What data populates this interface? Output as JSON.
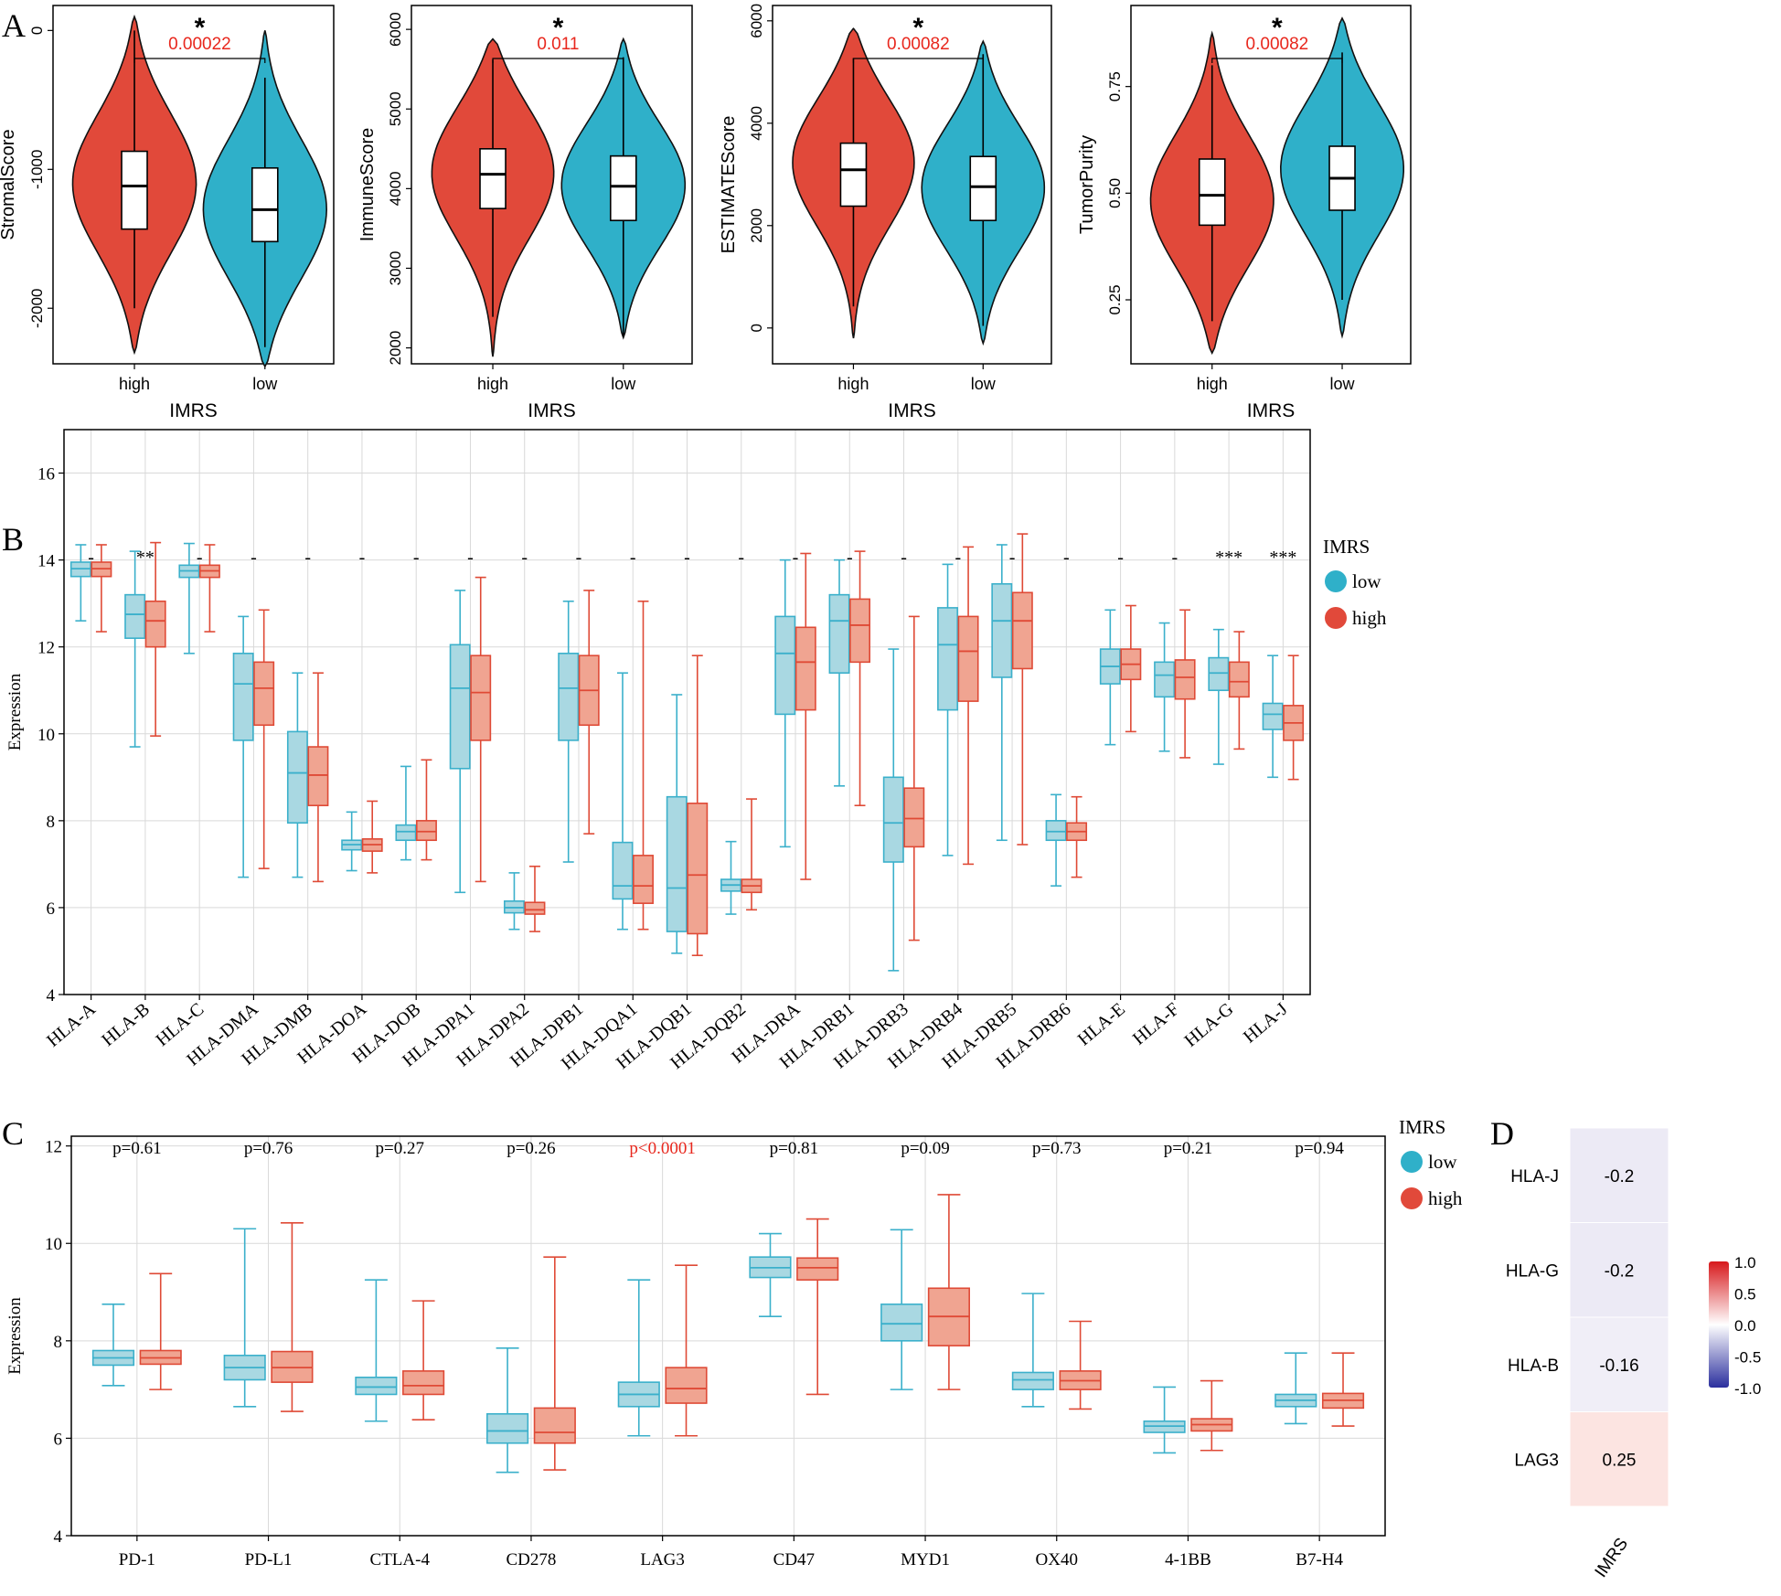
{
  "panel_labels": {
    "a": "A",
    "b": "B",
    "c": "C",
    "d": "D"
  },
  "colors": {
    "high": "#e1493a",
    "low": "#2fb0c9",
    "high_light": "#f0a491",
    "low_light": "#a9d8e2",
    "low_box": "#3bb0cb",
    "high_box": "#df4a36",
    "sig_red": "#e8271d",
    "neg": "#5557a8",
    "pos": "#e8271d"
  },
  "chart_data": [
    {
      "id": "A1",
      "type": "violin",
      "title": "",
      "xlabel": "IMRS",
      "ylabel": "StromalScore",
      "categories": [
        "high",
        "low"
      ],
      "ylim": [
        -2400,
        180
      ],
      "yticks": [
        0,
        -1000,
        -2000
      ],
      "ytick_labels": [
        "0",
        "-1000",
        "-2000"
      ],
      "violins": [
        {
          "group": "high",
          "min": -2320,
          "max": 100,
          "q1": -1430,
          "median": -1120,
          "q3": -870,
          "lower_whisker": -2000,
          "upper_whisker": 0,
          "mode": -1100,
          "spread": 0.55
        },
        {
          "group": "low",
          "min": -2420,
          "max": 0,
          "q1": -1520,
          "median": -1290,
          "q3": -990,
          "lower_whisker": -2280,
          "upper_whisker": -340,
          "mode": -1300,
          "spread": 0.55
        }
      ],
      "significance": {
        "stars": "*",
        "pvalue": "0.00022"
      }
    },
    {
      "id": "A2",
      "type": "violin",
      "title": "",
      "xlabel": "IMRS",
      "ylabel": "ImmuneScore",
      "categories": [
        "high",
        "low"
      ],
      "ylim": [
        1800,
        6300
      ],
      "yticks": [
        2000,
        3000,
        4000,
        5000,
        6000
      ],
      "ytick_labels": [
        "2000",
        "3000",
        "4000",
        "5000",
        "6000"
      ],
      "violins": [
        {
          "group": "high",
          "min": 1890,
          "max": 5880,
          "q1": 3750,
          "median": 4180,
          "q3": 4500,
          "lower_whisker": 2390,
          "upper_whisker": 5620,
          "mode": 4250,
          "spread": 0.45
        },
        {
          "group": "low",
          "min": 2130,
          "max": 5880,
          "q1": 3600,
          "median": 4030,
          "q3": 4410,
          "lower_whisker": 2140,
          "upper_whisker": 5650,
          "mode": 4050,
          "spread": 0.45
        }
      ],
      "significance": {
        "stars": "*",
        "pvalue": "0.011"
      }
    },
    {
      "id": "A3",
      "type": "violin",
      "title": "",
      "xlabel": "IMRS",
      "ylabel": "ESTIMATEScore",
      "categories": [
        "high",
        "low"
      ],
      "ylim": [
        -700,
        6300
      ],
      "yticks": [
        0,
        2000,
        4000,
        6000
      ],
      "ytick_labels": [
        "0",
        "2000",
        "4000",
        "6000"
      ],
      "violins": [
        {
          "group": "high",
          "min": -200,
          "max": 5850,
          "q1": 2380,
          "median": 3090,
          "q3": 3610,
          "lower_whisker": 420,
          "upper_whisker": 5270,
          "mode": 3300,
          "spread": 0.5
        },
        {
          "group": "low",
          "min": -300,
          "max": 5600,
          "q1": 2100,
          "median": 2760,
          "q3": 3350,
          "lower_whisker": 40,
          "upper_whisker": 5350,
          "mode": 2750,
          "spread": 0.5
        }
      ],
      "significance": {
        "stars": "*",
        "pvalue": "0.00082"
      }
    },
    {
      "id": "A4",
      "type": "violin",
      "title": "",
      "xlabel": "IMRS",
      "ylabel": "TumorPurity",
      "categories": [
        "high",
        "low"
      ],
      "ylim": [
        0.1,
        0.94
      ],
      "yticks": [
        0.25,
        0.5,
        0.75
      ],
      "ytick_labels": [
        "0.25",
        "0.50",
        "0.75"
      ],
      "violins": [
        {
          "group": "high",
          "min": 0.125,
          "max": 0.875,
          "q1": 0.425,
          "median": 0.495,
          "q3": 0.58,
          "lower_whisker": 0.2,
          "upper_whisker": 0.8,
          "mode": 0.48,
          "spread": 0.5
        },
        {
          "group": "low",
          "min": 0.165,
          "max": 0.91,
          "q1": 0.46,
          "median": 0.535,
          "q3": 0.61,
          "lower_whisker": 0.25,
          "upper_whisker": 0.83,
          "mode": 0.56,
          "spread": 0.5
        }
      ],
      "significance": {
        "stars": "*",
        "pvalue": "0.00082"
      }
    },
    {
      "id": "B",
      "type": "box",
      "ylabel": "Expression",
      "xlabel": "",
      "ylim": [
        4,
        17
      ],
      "yticks": [
        4,
        6,
        8,
        10,
        12,
        14,
        16
      ],
      "ytick_labels": [
        "4",
        "6",
        "8",
        "10",
        "12",
        "14",
        "16"
      ],
      "legend_title": "IMRS",
      "legend": [
        "low",
        "high"
      ],
      "categories": [
        "HLA-A",
        "HLA-B",
        "HLA-C",
        "HLA-DMA",
        "HLA-DMB",
        "HLA-DOA",
        "HLA-DOB",
        "HLA-DPA1",
        "HLA-DPA2",
        "HLA-DPB1",
        "HLA-DQA1",
        "HLA-DQB1",
        "HLA-DQB2",
        "HLA-DRA",
        "HLA-DRB1",
        "HLA-DRB3",
        "HLA-DRB4",
        "HLA-DRB5",
        "HLA-DRB6",
        "HLA-E",
        "HLA-F",
        "HLA-G",
        "HLA-J"
      ],
      "significance": [
        "-",
        "**",
        "-",
        "-",
        "-",
        "-",
        "-",
        "-",
        "-",
        "-",
        "-",
        "-",
        "-",
        "-",
        "-",
        "-",
        "-",
        "-",
        "-",
        "-",
        "-",
        "***",
        "***"
      ],
      "series": [
        {
          "name": "low",
          "boxes": [
            [
              12.6,
              13.62,
              13.8,
              13.95,
              14.35
            ],
            [
              9.7,
              12.2,
              12.75,
              13.2,
              14.2
            ],
            [
              11.85,
              13.6,
              13.75,
              13.88,
              14.38
            ],
            [
              6.7,
              9.85,
              11.15,
              11.85,
              12.7
            ],
            [
              6.7,
              7.95,
              9.1,
              10.05,
              11.4
            ],
            [
              6.85,
              7.33,
              7.45,
              7.55,
              8.2
            ],
            [
              7.1,
              7.55,
              7.75,
              7.9,
              9.25
            ],
            [
              6.35,
              9.2,
              11.05,
              12.05,
              13.3
            ],
            [
              5.5,
              5.88,
              6.0,
              6.15,
              6.8
            ],
            [
              7.05,
              9.85,
              11.05,
              11.85,
              13.05
            ],
            [
              5.5,
              6.2,
              6.5,
              7.5,
              11.4
            ],
            [
              4.95,
              5.45,
              6.45,
              8.55,
              10.9
            ],
            [
              5.85,
              6.38,
              6.52,
              6.65,
              7.52
            ],
            [
              7.4,
              10.45,
              11.85,
              12.7,
              14.0
            ],
            [
              8.8,
              11.4,
              12.6,
              13.2,
              14.0
            ],
            [
              4.55,
              7.05,
              7.95,
              9.0,
              11.95
            ],
            [
              7.2,
              10.55,
              12.05,
              12.9,
              13.9
            ],
            [
              7.55,
              11.3,
              12.6,
              13.45,
              14.35
            ],
            [
              6.5,
              7.55,
              7.75,
              8.0,
              8.6
            ],
            [
              9.75,
              11.15,
              11.55,
              11.95,
              12.85
            ],
            [
              9.6,
              10.85,
              11.35,
              11.65,
              12.55
            ],
            [
              9.3,
              11.0,
              11.4,
              11.75,
              12.4
            ],
            [
              9.0,
              10.1,
              10.45,
              10.7,
              11.8
            ]
          ]
        },
        {
          "name": "high",
          "boxes": [
            [
              12.35,
              13.62,
              13.8,
              13.95,
              14.35
            ],
            [
              9.95,
              12.0,
              12.6,
              13.05,
              14.4
            ],
            [
              12.35,
              13.6,
              13.75,
              13.88,
              14.35
            ],
            [
              6.9,
              10.2,
              11.05,
              11.65,
              12.85
            ],
            [
              6.6,
              8.35,
              9.05,
              9.7,
              11.4
            ],
            [
              6.8,
              7.3,
              7.45,
              7.58,
              8.45
            ],
            [
              7.1,
              7.55,
              7.75,
              8.0,
              9.4
            ],
            [
              6.6,
              9.85,
              10.95,
              11.8,
              13.6
            ],
            [
              5.45,
              5.85,
              5.95,
              6.12,
              6.95
            ],
            [
              7.7,
              10.2,
              11.0,
              11.8,
              13.3
            ],
            [
              5.5,
              6.1,
              6.5,
              7.2,
              13.05
            ],
            [
              4.9,
              5.4,
              6.75,
              8.4,
              11.8
            ],
            [
              5.95,
              6.35,
              6.5,
              6.65,
              8.5
            ],
            [
              6.65,
              10.55,
              11.65,
              12.45,
              14.15
            ],
            [
              8.35,
              11.65,
              12.5,
              13.1,
              14.2
            ],
            [
              5.25,
              7.4,
              8.05,
              8.75,
              12.7
            ],
            [
              7.0,
              10.75,
              11.9,
              12.7,
              14.3
            ],
            [
              7.45,
              11.5,
              12.6,
              13.25,
              14.6
            ],
            [
              6.7,
              7.55,
              7.75,
              7.95,
              8.55
            ],
            [
              10.05,
              11.25,
              11.6,
              11.95,
              12.95
            ],
            [
              9.45,
              10.8,
              11.3,
              11.7,
              12.85
            ],
            [
              9.65,
              10.85,
              11.2,
              11.65,
              12.35
            ],
            [
              8.95,
              9.85,
              10.25,
              10.65,
              11.8
            ]
          ]
        }
      ]
    },
    {
      "id": "C",
      "type": "box",
      "ylabel": "Expression",
      "xlabel": "",
      "ylim": [
        4,
        12.2
      ],
      "yticks": [
        4,
        6,
        8,
        10,
        12
      ],
      "ytick_labels": [
        "4",
        "6",
        "8",
        "10",
        "12"
      ],
      "legend_title": "IMRS",
      "legend": [
        "low",
        "high"
      ],
      "categories": [
        "PD-1",
        "PD-L1",
        "CTLA-4",
        "CD278",
        "LAG3",
        "CD47",
        "MYD1",
        "OX40",
        "4-1BB",
        "B7-H4"
      ],
      "pvalues": [
        "p=0.61",
        "p=0.76",
        "p=0.27",
        "p=0.26",
        "p<0.0001",
        "p=0.81",
        "p=0.09",
        "p=0.73",
        "p=0.21",
        "p=0.94"
      ],
      "pvalue_highlight": [
        false,
        false,
        false,
        false,
        true,
        false,
        false,
        false,
        false,
        false
      ],
      "series": [
        {
          "name": "low",
          "boxes": [
            [
              7.08,
              7.5,
              7.65,
              7.8,
              8.75
            ],
            [
              6.65,
              7.2,
              7.45,
              7.7,
              10.3
            ],
            [
              6.35,
              6.9,
              7.05,
              7.25,
              9.25
            ],
            [
              5.3,
              5.9,
              6.15,
              6.5,
              7.85
            ],
            [
              6.05,
              6.65,
              6.9,
              7.15,
              9.25
            ],
            [
              8.5,
              9.3,
              9.5,
              9.72,
              10.2
            ],
            [
              7.0,
              8.0,
              8.35,
              8.75,
              10.28
            ],
            [
              6.65,
              7.0,
              7.2,
              7.35,
              8.97
            ],
            [
              5.7,
              6.12,
              6.25,
              6.35,
              7.05
            ],
            [
              6.3,
              6.65,
              6.78,
              6.9,
              7.75
            ]
          ]
        },
        {
          "name": "high",
          "boxes": [
            [
              7.0,
              7.52,
              7.65,
              7.8,
              9.38
            ],
            [
              6.55,
              7.15,
              7.45,
              7.78,
              10.42
            ],
            [
              6.38,
              6.9,
              7.08,
              7.38,
              8.82
            ],
            [
              5.35,
              5.9,
              6.12,
              6.62,
              9.72
            ],
            [
              6.05,
              6.72,
              7.02,
              7.45,
              9.55
            ],
            [
              6.9,
              9.25,
              9.5,
              9.7,
              10.5
            ],
            [
              7.0,
              7.9,
              8.5,
              9.08,
              11.0
            ],
            [
              6.6,
              7.0,
              7.18,
              7.38,
              8.4
            ],
            [
              5.75,
              6.15,
              6.28,
              6.4,
              7.18
            ],
            [
              6.25,
              6.62,
              6.78,
              6.92,
              7.75
            ]
          ]
        }
      ]
    },
    {
      "id": "D",
      "type": "heatmap",
      "rows": [
        "HLA-J",
        "HLA-G",
        "HLA-B",
        "LAG3"
      ],
      "columns": [
        "IMRS"
      ],
      "values": [
        -0.2,
        -0.2,
        -0.16,
        0.25
      ],
      "value_labels": [
        "-0.2",
        "-0.2",
        "-0.16",
        "0.25"
      ],
      "colorbar_range": [
        -1.0,
        1.0
      ],
      "colorbar_ticks": [
        "1.0",
        "0.5",
        "0.0",
        "-0.5",
        "-1.0"
      ]
    }
  ]
}
